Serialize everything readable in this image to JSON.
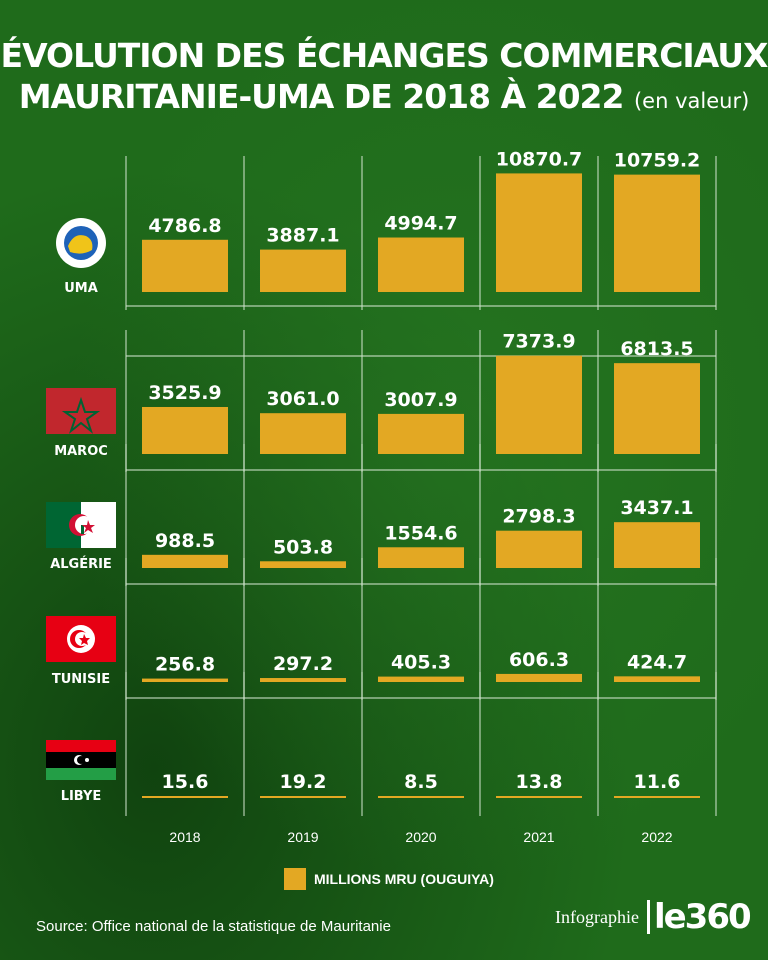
{
  "title": {
    "line1": "ÉVOLUTION DES ÉCHANGES COMMERCIAUX",
    "line2": "MAURITANIE-UMA DE 2018 À 2022",
    "unit": "(en valeur)"
  },
  "legend_label": "MILLIONS MRU (OUGUIYA)",
  "source": "Source: Office national de la statistique de Mauritanie",
  "brand": {
    "infographie": "Infographie",
    "logo": "le360"
  },
  "colors": {
    "bar": "#e3a823",
    "background": "#1f6b1b",
    "grid": "#cfe3cc"
  },
  "chart_data": {
    "type": "bar",
    "categories": [
      "2018",
      "2019",
      "2020",
      "2021",
      "2022"
    ],
    "series": [
      {
        "name": "UMA",
        "values": [
          4786.8,
          3887.1,
          4994.7,
          10870.7,
          10759.2
        ]
      },
      {
        "name": "MAROC",
        "values": [
          3525.9,
          3061.0,
          3007.9,
          7373.9,
          6813.5
        ]
      },
      {
        "name": "ALGÉRIE",
        "values": [
          988.5,
          503.8,
          1554.6,
          2798.3,
          3437.1
        ]
      },
      {
        "name": "TUNISIE",
        "values": [
          256.8,
          297.2,
          405.3,
          606.3,
          424.7
        ]
      },
      {
        "name": "LIBYE",
        "values": [
          15.6,
          19.2,
          8.5,
          13.8,
          11.6
        ]
      }
    ],
    "value_labels": [
      [
        "4786.8",
        "3887.1",
        "4994.7",
        "10870.7",
        "10759.2"
      ],
      [
        "3525.9",
        "3061.0",
        "3007.9",
        "7373.9",
        "6813.5"
      ],
      [
        "988.5",
        "503.8",
        "1554.6",
        "2798.3",
        "3437.1"
      ],
      [
        "256.8",
        "297.2",
        "405.3",
        "606.3",
        "424.7"
      ],
      [
        "15.6",
        "19.2",
        "8.5",
        "13.8",
        "11.6"
      ]
    ],
    "ylim": [
      0,
      11000
    ],
    "unit": "MILLIONS MRU (OUGUIYA)"
  }
}
